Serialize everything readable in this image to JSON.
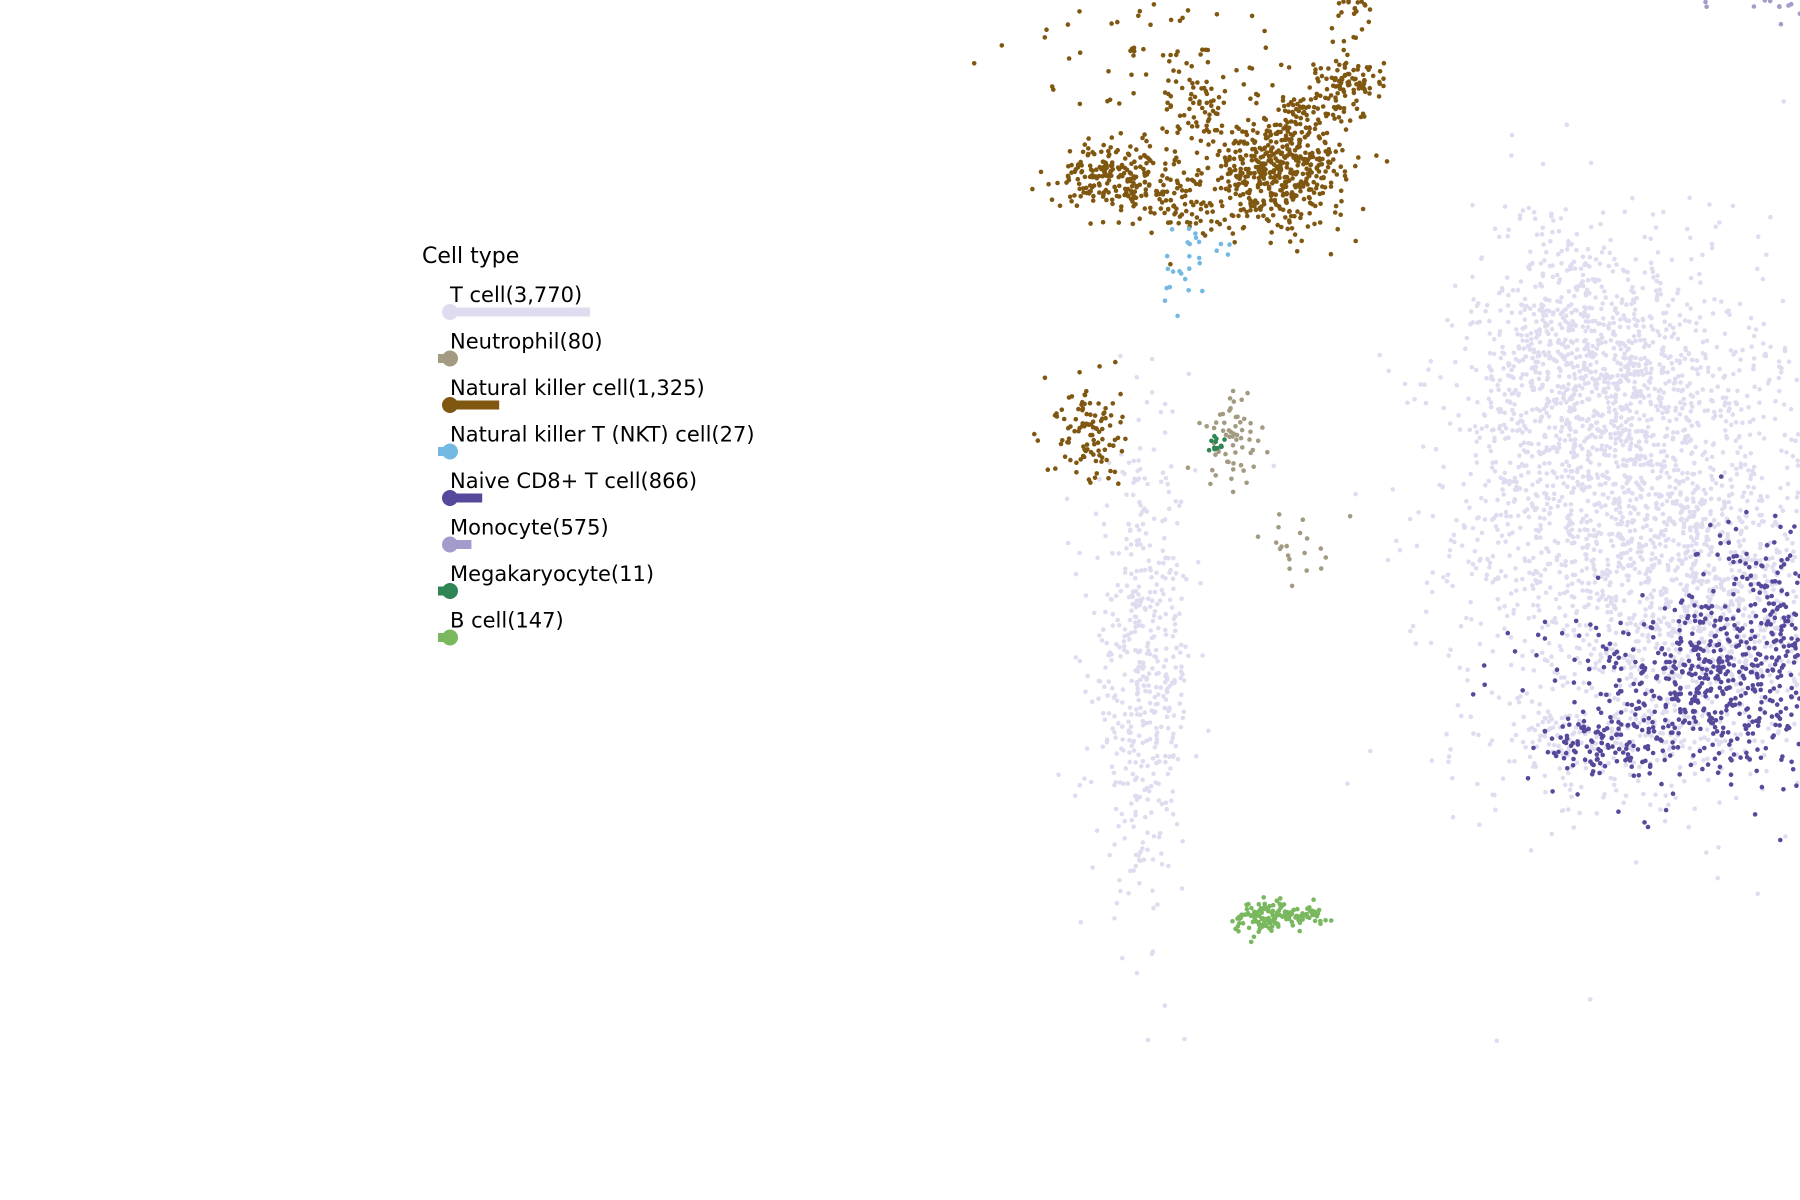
{
  "chart_data": {
    "type": "scatter",
    "title": "",
    "xlabel": "",
    "ylabel": "",
    "axes_visible": false,
    "grid": false,
    "legend": {
      "title": "Cell type",
      "placement": "left",
      "bar_max": 3770
    },
    "series": [
      {
        "name": "T cell(3,770)",
        "count": 3770,
        "color": "#e0dcef",
        "density": 1.0,
        "clusters": [
          {
            "cx": 12.6,
            "cy": 8.5,
            "sx": 1.6,
            "sy": 2.2,
            "w": 0.45
          },
          {
            "cx": 11.3,
            "cy": 11.6,
            "sx": 0.8,
            "sy": 1.4,
            "w": 0.12
          },
          {
            "cx": 12.2,
            "cy": 11.0,
            "sx": 1.3,
            "sy": 1.1,
            "w": 0.1
          },
          {
            "cx": 17.2,
            "cy": 11.6,
            "sx": 0.6,
            "sy": 1.2,
            "w": 0.06
          },
          {
            "cx": 3.8,
            "cy": 5.8,
            "sx": 0.45,
            "sy": 1.9,
            "w": 0.13
          },
          {
            "cx": 12.0,
            "cy": 4.6,
            "sx": 1.1,
            "sy": 0.4,
            "w": 0.04
          },
          {
            "cx": 14.6,
            "cy": 6.8,
            "sx": 1.0,
            "sy": 1.2,
            "w": 0.1
          }
        ]
      },
      {
        "name": "Neutrophil(80)",
        "count": 80,
        "color": "#a39a82",
        "density": 1.0,
        "clusters": [
          {
            "cx": 5.4,
            "cy": 10.0,
            "sx": 0.3,
            "sy": 0.4,
            "w": 0.75
          },
          {
            "cx": 6.7,
            "cy": 8.1,
            "sx": 0.4,
            "sy": 0.4,
            "w": 0.25
          }
        ]
      },
      {
        "name": "Natural killer cell(1,325)",
        "count": 1325,
        "color": "#7f5710",
        "density": 1.0,
        "clusters": [
          {
            "cx": 6.2,
            "cy": 14.8,
            "sx": 0.6,
            "sy": 0.5,
            "w": 0.38
          },
          {
            "cx": 3.3,
            "cy": 14.7,
            "sx": 0.5,
            "sy": 0.3,
            "w": 0.16
          },
          {
            "cx": 7.6,
            "cy": 18.4,
            "sx": 0.2,
            "sy": 0.7,
            "w": 0.1
          },
          {
            "cx": 2.8,
            "cy": 10.1,
            "sx": 0.3,
            "sy": 0.5,
            "w": 0.08
          },
          {
            "cx": 7.0,
            "cy": 16.0,
            "sx": 0.4,
            "sy": 0.3,
            "w": 0.06
          },
          {
            "cx": 7.6,
            "cy": 16.4,
            "sx": 0.3,
            "sy": 0.2,
            "w": 0.05
          },
          {
            "cx": 4.8,
            "cy": 15.8,
            "sx": 0.3,
            "sy": 0.4,
            "w": 0.04
          },
          {
            "cx": 4.2,
            "cy": 17.0,
            "sx": 1.2,
            "sy": 1.2,
            "w": 0.08
          },
          {
            "cx": 4.5,
            "cy": 14.2,
            "sx": 0.3,
            "sy": 0.3,
            "w": 0.05
          }
        ]
      },
      {
        "name": "Natural killer T (NKT) cell(27)",
        "count": 27,
        "color": "#74b9e3",
        "density": 1.0,
        "clusters": [
          {
            "cx": 4.5,
            "cy": 13.2,
            "sx": 0.3,
            "sy": 0.4,
            "w": 1.0
          }
        ]
      },
      {
        "name": "Naive CD8+ T cell(866)",
        "count": 866,
        "color": "#56489a",
        "density": 1.0,
        "clusters": [
          {
            "cx": 13.8,
            "cy": 5.6,
            "sx": 1.4,
            "sy": 0.8,
            "w": 0.6
          },
          {
            "cx": 15.3,
            "cy": 6.8,
            "sx": 0.8,
            "sy": 1.0,
            "w": 0.3
          },
          {
            "cx": 12.0,
            "cy": 4.5,
            "sx": 0.6,
            "sy": 0.3,
            "w": 0.1
          }
        ]
      },
      {
        "name": "Monocyte(575)",
        "count": 575,
        "color": "#a29bcc",
        "density": 1.0,
        "clusters": [
          {
            "cx": 14.5,
            "cy": 19.1,
            "sx": 0.6,
            "sy": 0.2,
            "w": 0.55
          },
          {
            "cx": 13.9,
            "cy": 18.6,
            "sx": 0.3,
            "sy": 0.3,
            "w": 0.2
          },
          {
            "cx": 15.1,
            "cy": 18.2,
            "sx": 0.2,
            "sy": 0.3,
            "w": 0.1
          },
          {
            "cx": 16.2,
            "cy": 17.8,
            "sx": 0.4,
            "sy": 0.2,
            "w": 0.15
          }
        ]
      },
      {
        "name": "Megakaryocyte(11)",
        "count": 11,
        "color": "#2f8553",
        "density": 1.0,
        "clusters": [
          {
            "cx": 5.1,
            "cy": 9.9,
            "sx": 0.08,
            "sy": 0.08,
            "w": 1.0
          }
        ]
      },
      {
        "name": "B cell(147)",
        "count": 147,
        "color": "#79b85e",
        "density": 1.0,
        "clusters": [
          {
            "cx": 6.0,
            "cy": 1.5,
            "sx": 0.3,
            "sy": 0.15,
            "w": 0.8
          },
          {
            "cx": 6.8,
            "cy": 1.5,
            "sx": 0.2,
            "sy": 0.08,
            "w": 0.2
          }
        ]
      }
    ]
  }
}
